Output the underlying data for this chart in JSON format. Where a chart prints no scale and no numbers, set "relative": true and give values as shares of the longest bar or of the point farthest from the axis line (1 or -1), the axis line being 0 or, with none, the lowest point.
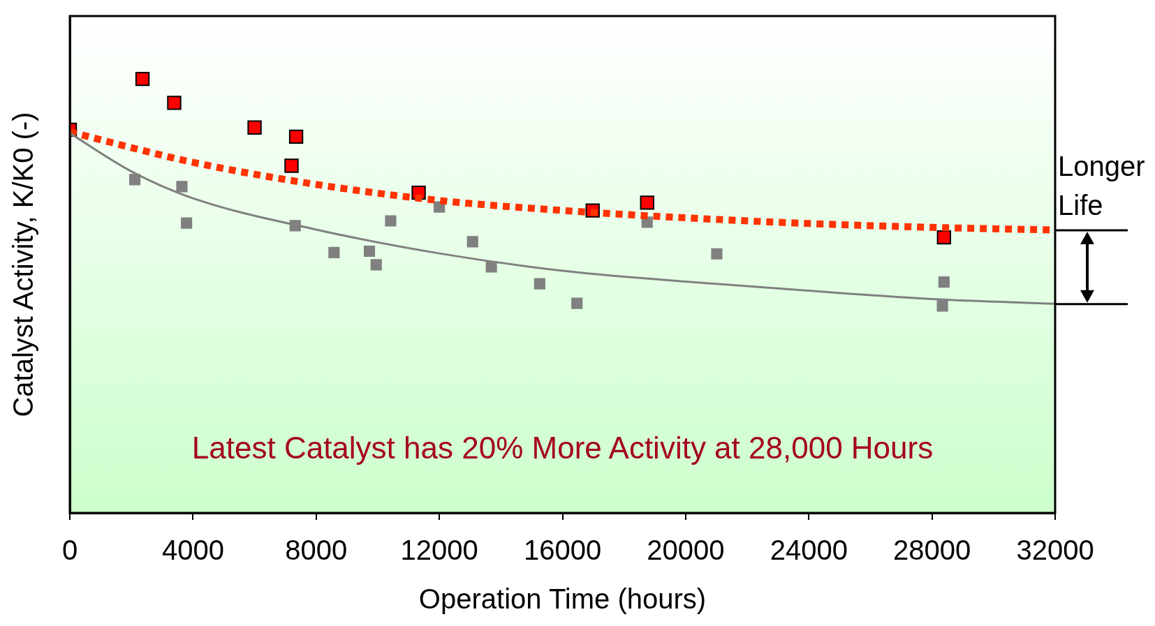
{
  "chart_data": {
    "type": "scatter",
    "xlabel": "Operation Time (hours)",
    "ylabel": "Catalyst Activity, K/K0 (-)",
    "relative": true,
    "xlim": [
      0,
      32000
    ],
    "xticks": [
      0,
      4000,
      8000,
      12000,
      16000,
      20000,
      24000,
      28000,
      32000
    ],
    "grid": false,
    "legend": false,
    "annotations": [
      "Latest Catalyst has 20% More Activity at 28,000 Hours",
      "Longer Life"
    ],
    "series": [
      {
        "type": "scatter",
        "marker": "square",
        "color": "#808080",
        "x": [
          2110,
          3640,
          3790,
          7320,
          8580,
          9730,
          9950,
          10420,
          12000,
          13080,
          13690,
          15260,
          16470,
          18750,
          21010,
          28390,
          28340
        ],
        "values": [
          0.768,
          0.752,
          0.668,
          0.662,
          0.6,
          0.603,
          0.572,
          0.673,
          0.705,
          0.625,
          0.567,
          0.528,
          0.483,
          0.67,
          0.597,
          0.532,
          0.477
        ]
      },
      {
        "type": "line",
        "marker": "none",
        "line_style": "solid",
        "color": "#808080",
        "x": [
          0,
          2000,
          4000,
          8000,
          12000,
          16000,
          20000,
          24000,
          28000,
          32000
        ],
        "values": [
          0.875,
          0.787,
          0.725,
          0.653,
          0.598,
          0.558,
          0.533,
          0.512,
          0.493,
          0.482
        ]
      },
      {
        "type": "line",
        "marker": "none",
        "line_style": "dotted",
        "color": "#ff3300",
        "x": [
          0,
          4000,
          8000,
          12000,
          16000,
          20000,
          24000,
          28000,
          32000
        ],
        "values": [
          0.878,
          0.808,
          0.757,
          0.72,
          0.697,
          0.68,
          0.667,
          0.658,
          0.652
        ]
      },
      {
        "type": "scatter",
        "marker": "square",
        "color": "#ff0000",
        "x": [
          0,
          2360,
          3390,
          6000,
          7350,
          7200,
          11330,
          16980,
          18750,
          28390
        ],
        "values": [
          0.883,
          1.0,
          0.945,
          0.888,
          0.867,
          0.8,
          0.738,
          0.697,
          0.715,
          0.635
        ]
      }
    ]
  }
}
